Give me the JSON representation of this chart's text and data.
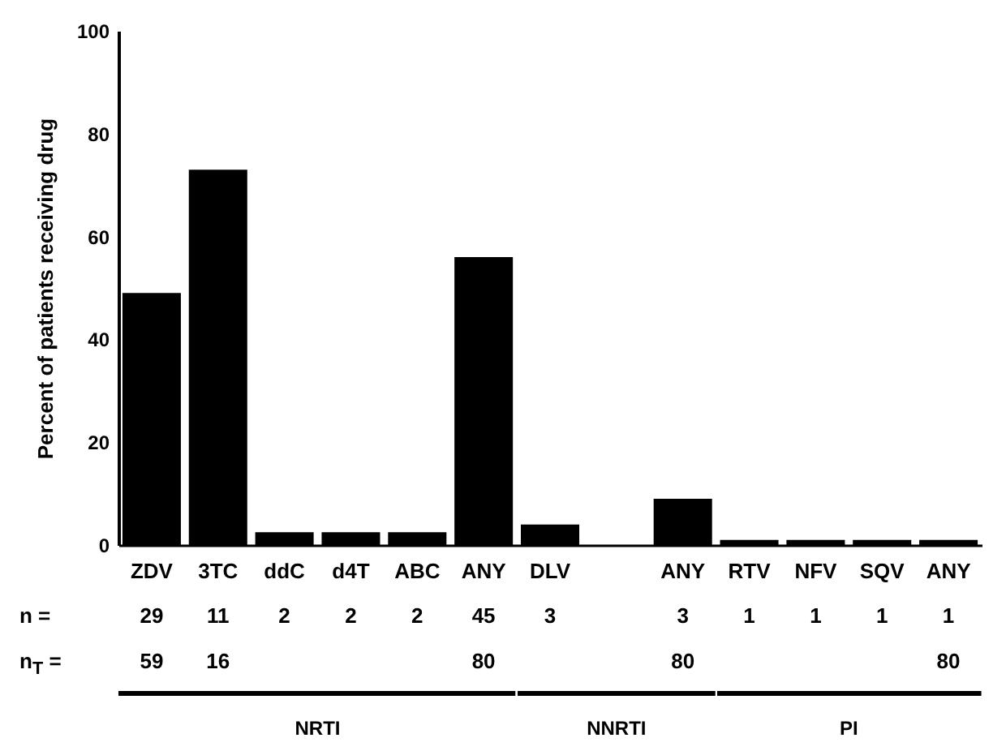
{
  "chart_data": {
    "type": "bar",
    "ylabel": "Percent of patients receiving drug",
    "categories": [
      "ZDV",
      "3TC",
      "ddC",
      "d4T",
      "ABC",
      "ANY",
      "DLV",
      null,
      "ANY",
      "RTV",
      "NFV",
      "SQV",
      "ANY"
    ],
    "values": [
      49,
      73,
      2.5,
      2.5,
      2.5,
      56,
      4,
      0,
      9,
      1,
      1,
      1,
      1
    ],
    "color": "#000000",
    "ylim": [
      0,
      100
    ],
    "yticks": [
      0,
      20,
      40,
      60,
      80,
      100
    ],
    "grid": false,
    "annotations": [
      "n =",
      "29",
      "11",
      "2",
      "2",
      "2",
      "45",
      "3",
      "3",
      "1",
      "1",
      "1",
      "1",
      "n$_{T}$ =",
      "59",
      "16",
      "80",
      "80",
      "80",
      "NRTI",
      "NNRTI",
      "PI"
    ]
  }
}
